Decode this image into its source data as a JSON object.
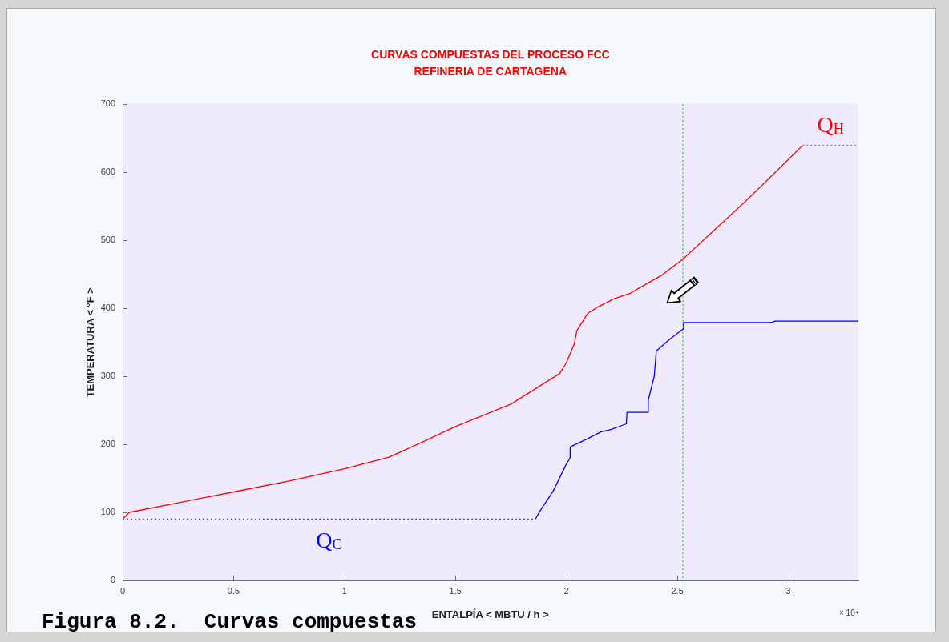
{
  "chart_data": {
    "type": "line",
    "title": "CURVAS COMPUESTAS DEL PROCESO FCC",
    "subtitle": "REFINERIA DE CARTAGENA",
    "xlabel": "ENTALPÍA < MBTU / h >",
    "ylabel": "TEMPERATURA < °F >",
    "annotations": [
      "× 10⁴",
      "Figura 8.2.  Curvas compuestas"
    ],
    "series": [
      {
        "name": "Q$_{H}$",
        "color": "#ff0000",
        "x": [
          0,
          0.03,
          0.25,
          0.5,
          0.75,
          1.0,
          1.2,
          1.35,
          1.5,
          1.75,
          1.97,
          2.0,
          2.035,
          2.047,
          2.095,
          2.143,
          2.215,
          2.288,
          2.336,
          2.432,
          2.525,
          2.565,
          2.81,
          3.064
        ],
        "values": [
          90,
          100,
          114,
          130,
          146,
          164,
          181,
          203,
          226,
          259,
          304,
          320,
          347,
          367,
          392,
          402,
          414,
          422,
          431,
          449,
          472,
          484,
          558,
          639
        ]
      },
      {
        "color": "#555555",
        "line_style": "dotted",
        "x": [
          3.064,
          3.316
        ],
        "values": [
          639,
          639
        ]
      },
      {
        "name": "Q$_{C}$",
        "color": "#0000ff",
        "x": [
          1.86,
          1.885,
          1.94,
          2.0,
          2.017,
          2.017,
          2.095,
          2.155,
          2.203,
          2.27,
          2.273,
          2.366,
          2.369,
          2.396,
          2.405,
          2.468,
          2.525,
          2.528,
          2.925,
          2.94,
          3.316
        ],
        "values": [
          90,
          104,
          131,
          171,
          180,
          196,
          208,
          218,
          222,
          230,
          247,
          247,
          265,
          300,
          337,
          355,
          369,
          379,
          379,
          381,
          381
        ]
      },
      {
        "color": "#555555",
        "line_style": "dotted",
        "x": [
          0,
          1.86
        ],
        "values": [
          90,
          90
        ]
      }
    ],
    "ref_lines": [
      {
        "axis": "x",
        "value": 2.525,
        "color": "#33cc33",
        "line_style": "dotted"
      }
    ],
    "xlim": [
      0,
      3.316
    ],
    "xticks": [
      0,
      0.5,
      1,
      1.5,
      2,
      2.5,
      3
    ],
    "ylim": [
      0,
      700
    ],
    "yticks": [
      0,
      100,
      200,
      300,
      400,
      500,
      600,
      700
    ]
  }
}
